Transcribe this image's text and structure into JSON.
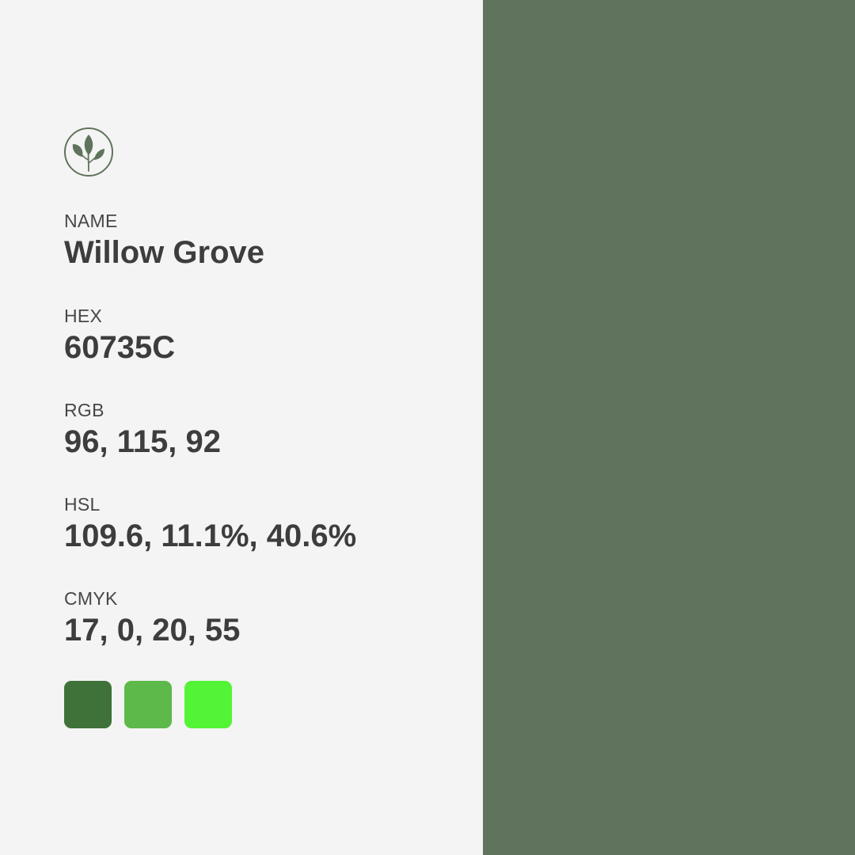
{
  "logo": {
    "icon": "leaf-sprig-icon",
    "color": "#60735C"
  },
  "fields": {
    "name": {
      "label": "NAME",
      "value": "Willow Grove"
    },
    "hex": {
      "label": "HEX",
      "value": "60735C"
    },
    "rgb": {
      "label": "RGB",
      "value": "96, 115, 92"
    },
    "hsl": {
      "label": "HSL",
      "value": "109.6, 11.1%, 40.6%"
    },
    "cmyk": {
      "label": "CMYK",
      "value": "17, 0, 20, 55"
    }
  },
  "main_color": "#60735C",
  "swatches": [
    "#3F7238",
    "#5CB94A",
    "#53F435"
  ],
  "background_color": "#F4F4F4",
  "text_color": "#3F3F3F"
}
